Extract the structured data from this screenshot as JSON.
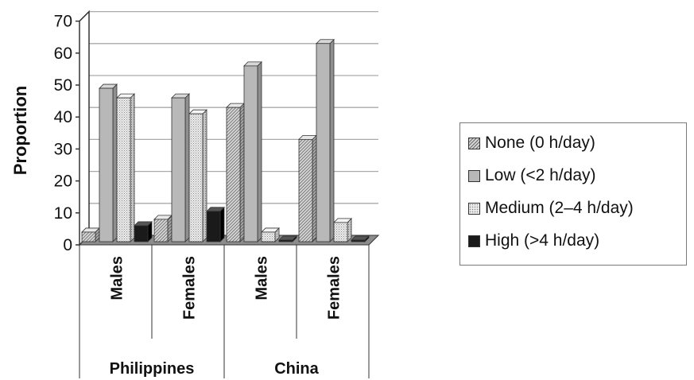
{
  "chart_data": {
    "type": "bar",
    "ylabel": "Proportion",
    "xlabel": "",
    "ylim": [
      0,
      70
    ],
    "yticks": [
      0,
      10,
      20,
      30,
      40,
      50,
      60,
      70
    ],
    "grid": true,
    "legend_position": "right",
    "groups": [
      {
        "name": "Philippines",
        "categories": [
          "Males",
          "Females"
        ]
      },
      {
        "name": "China",
        "categories": [
          "Males",
          "Females"
        ]
      }
    ],
    "categories": [
      "Males",
      "Females",
      "Males",
      "Females"
    ],
    "series": [
      {
        "name": "None (0 h/day)",
        "pattern": "diagonal-hatch",
        "values": [
          3,
          7,
          42,
          32
        ]
      },
      {
        "name": "Low (<2 h/day)",
        "pattern": "solid-gray",
        "values": [
          48,
          45,
          55,
          62
        ]
      },
      {
        "name": "Medium (2–4 h/day)",
        "pattern": "dotted",
        "values": [
          45,
          40,
          3,
          6
        ]
      },
      {
        "name": "High (>4 h/day)",
        "pattern": "solid-black",
        "values": [
          5,
          9.5,
          0.5,
          0.5
        ]
      }
    ]
  },
  "colors": {
    "none_face": "#d2d2d2",
    "low_face": "#b8b8b8",
    "medium_face": "#e6e6e6",
    "high_face": "#1a1a1a",
    "floor": "#8c8c8c",
    "grid": "#aaaaaa"
  }
}
